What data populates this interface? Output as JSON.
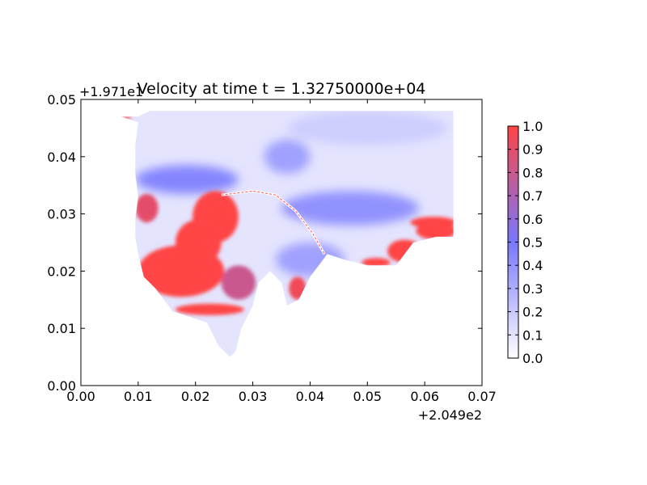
{
  "chart_data": {
    "type": "heatmap",
    "title": "Velocity at time t = 1.32750000e+04",
    "xlabel": "",
    "ylabel": "",
    "xlim": [
      0.0,
      0.07
    ],
    "ylim": [
      0.0,
      0.05
    ],
    "x_ticks": [
      "0.00",
      "0.01",
      "0.02",
      "0.03",
      "0.04",
      "0.05",
      "0.06",
      "0.07"
    ],
    "y_ticks": [
      "0.00",
      "0.01",
      "0.02",
      "0.03",
      "0.04",
      "0.05"
    ],
    "x_offset": "+2.049e2",
    "y_offset": "+1.971e1",
    "colorbar": {
      "ticks": [
        "0.0",
        "0.1",
        "0.2",
        "0.3",
        "0.4",
        "0.5",
        "0.6",
        "0.7",
        "0.8",
        "0.9",
        "1.0"
      ],
      "range": [
        0.0,
        1.0
      ],
      "colors": [
        "#ffffff",
        "#7777ff",
        "#ff4444"
      ]
    },
    "domain_outline": [
      [
        0.007,
        0.047
      ],
      [
        0.01,
        0.047
      ],
      [
        0.012,
        0.048
      ],
      [
        0.065,
        0.048
      ],
      [
        0.065,
        0.026
      ],
      [
        0.062,
        0.026
      ],
      [
        0.058,
        0.025
      ],
      [
        0.055,
        0.021
      ],
      [
        0.05,
        0.021
      ],
      [
        0.046,
        0.022
      ],
      [
        0.043,
        0.023
      ],
      [
        0.04,
        0.019
      ],
      [
        0.038,
        0.015
      ],
      [
        0.036,
        0.014
      ],
      [
        0.035,
        0.018
      ],
      [
        0.033,
        0.02
      ],
      [
        0.031,
        0.018
      ],
      [
        0.03,
        0.014
      ],
      [
        0.028,
        0.01
      ],
      [
        0.027,
        0.006
      ],
      [
        0.026,
        0.005
      ],
      [
        0.024,
        0.007
      ],
      [
        0.022,
        0.011
      ],
      [
        0.016,
        0.013
      ],
      [
        0.013,
        0.017
      ],
      [
        0.011,
        0.019
      ],
      [
        0.01,
        0.023
      ],
      [
        0.0095,
        0.026
      ],
      [
        0.0095,
        0.029
      ],
      [
        0.01,
        0.033
      ],
      [
        0.0095,
        0.037
      ],
      [
        0.0095,
        0.042
      ],
      [
        0.01,
        0.046
      ]
    ],
    "hotspots": [
      {
        "x": 0.0175,
        "y": 0.02,
        "rx": 0.0075,
        "ry": 0.0045,
        "value": 1.0
      },
      {
        "x": 0.0205,
        "y": 0.025,
        "rx": 0.004,
        "ry": 0.004,
        "value": 1.0
      },
      {
        "x": 0.0235,
        "y": 0.0295,
        "rx": 0.004,
        "ry": 0.0045,
        "value": 1.0
      },
      {
        "x": 0.0225,
        "y": 0.0133,
        "rx": 0.006,
        "ry": 0.001,
        "value": 1.0
      },
      {
        "x": 0.0115,
        "y": 0.031,
        "rx": 0.002,
        "ry": 0.0025,
        "value": 0.9
      },
      {
        "x": 0.0275,
        "y": 0.018,
        "rx": 0.003,
        "ry": 0.003,
        "value": 0.8
      },
      {
        "x": 0.0378,
        "y": 0.017,
        "rx": 0.0015,
        "ry": 0.002,
        "value": 0.95
      },
      {
        "x": 0.0515,
        "y": 0.0215,
        "rx": 0.0025,
        "ry": 0.0008,
        "value": 1.0
      },
      {
        "x": 0.0565,
        "y": 0.0235,
        "rx": 0.003,
        "ry": 0.002,
        "value": 1.0
      },
      {
        "x": 0.0615,
        "y": 0.0285,
        "rx": 0.004,
        "ry": 0.001,
        "value": 1.0
      },
      {
        "x": 0.062,
        "y": 0.027,
        "rx": 0.0035,
        "ry": 0.0015,
        "value": 1.0
      },
      {
        "x": 0.008,
        "y": 0.0469,
        "rx": 0.0008,
        "ry": 0.0003,
        "value": 1.0
      },
      {
        "x": 0.0185,
        "y": 0.036,
        "rx": 0.009,
        "ry": 0.0025,
        "value": 0.45
      },
      {
        "x": 0.047,
        "y": 0.031,
        "rx": 0.012,
        "ry": 0.003,
        "value": 0.4
      },
      {
        "x": 0.036,
        "y": 0.04,
        "rx": 0.004,
        "ry": 0.003,
        "value": 0.35
      },
      {
        "x": 0.04,
        "y": 0.022,
        "rx": 0.006,
        "ry": 0.003,
        "value": 0.35
      },
      {
        "x": 0.05,
        "y": 0.045,
        "rx": 0.014,
        "ry": 0.003,
        "value": 0.18
      }
    ],
    "channel_line": [
      [
        0.0245,
        0.0333
      ],
      [
        0.03,
        0.034
      ],
      [
        0.034,
        0.0333
      ],
      [
        0.0375,
        0.0305
      ],
      [
        0.0405,
        0.0265
      ],
      [
        0.0425,
        0.023
      ]
    ]
  }
}
